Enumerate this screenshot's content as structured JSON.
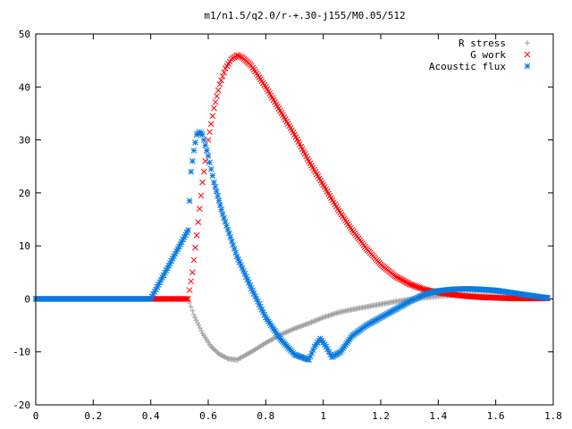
{
  "chart_data": {
    "type": "scatter",
    "title": "m1/n1.5/q2.0/r-+.30-j155/M0.05/512",
    "xlabel": "",
    "ylabel": "",
    "xlim": [
      0,
      1.8
    ],
    "ylim": [
      -20,
      50
    ],
    "x_ticks": [
      "0",
      "0.2",
      "0.4",
      "0.6",
      "0.8",
      "1",
      "1.2",
      "1.4",
      "1.6",
      "1.8"
    ],
    "y_ticks": [
      "-20",
      "-10",
      "0",
      "10",
      "20",
      "30",
      "40",
      "50"
    ],
    "legend_position": "top-right",
    "series": [
      {
        "name": "R stress",
        "marker": "plus",
        "color": "#a0a0a0",
        "x": [
          0.0,
          0.2,
          0.4,
          0.53,
          0.55,
          0.58,
          0.61,
          0.64,
          0.67,
          0.7,
          0.75,
          0.8,
          0.85,
          0.9,
          0.95,
          1.0,
          1.05,
          1.1,
          1.15,
          1.2,
          1.25,
          1.3,
          1.35,
          1.4,
          1.45,
          1.5,
          1.55,
          1.6,
          1.65,
          1.7,
          1.75,
          1.78
        ],
        "y": [
          0,
          0,
          0,
          0,
          -3,
          -6.5,
          -9,
          -10.5,
          -11.3,
          -11.5,
          -10,
          -8.3,
          -6.8,
          -5.6,
          -4.6,
          -3.5,
          -2.6,
          -2.0,
          -1.5,
          -1.0,
          -0.5,
          -0.1,
          0.2,
          0.5,
          0.7,
          0.8,
          0.8,
          0.7,
          0.6,
          0.4,
          0.2,
          0.1
        ]
      },
      {
        "name": "G work",
        "marker": "cross",
        "color": "#ff0000",
        "x": [
          0.0,
          0.2,
          0.4,
          0.53,
          0.545,
          0.56,
          0.58,
          0.6,
          0.62,
          0.64,
          0.66,
          0.68,
          0.7,
          0.72,
          0.75,
          0.8,
          0.85,
          0.9,
          0.95,
          1.0,
          1.05,
          1.1,
          1.15,
          1.2,
          1.25,
          1.3,
          1.35,
          1.4,
          1.45,
          1.5,
          1.55,
          1.6,
          1.65,
          1.7,
          1.75,
          1.78
        ],
        "y": [
          0,
          0,
          0,
          0,
          5,
          12,
          22,
          30,
          36,
          40.5,
          43.5,
          45.2,
          46,
          45.5,
          44,
          40,
          35.5,
          31,
          26,
          21.5,
          17,
          13,
          9.5,
          6.5,
          4.3,
          2.8,
          1.8,
          1.2,
          0.8,
          0.5,
          0.3,
          0.2,
          0.1,
          0.1,
          0.1,
          0.1
        ]
      },
      {
        "name": "Acoustic flux",
        "marker": "star",
        "color": "#0a7be0",
        "x": [
          0.0,
          0.2,
          0.4,
          0.53,
          0.54,
          0.55,
          0.56,
          0.57,
          0.58,
          0.6,
          0.62,
          0.65,
          0.7,
          0.75,
          0.8,
          0.85,
          0.9,
          0.95,
          0.97,
          0.99,
          1.01,
          1.03,
          1.06,
          1.1,
          1.15,
          1.2,
          1.25,
          1.3,
          1.35,
          1.4,
          1.45,
          1.5,
          1.55,
          1.6,
          1.65,
          1.7,
          1.75,
          1.78
        ],
        "y": [
          0,
          0,
          0,
          13,
          24,
          28,
          31,
          31.5,
          31,
          27,
          22,
          16,
          8,
          2,
          -3.5,
          -7.5,
          -10.5,
          -11.5,
          -9,
          -7.5,
          -9,
          -11,
          -10,
          -7,
          -5,
          -3.5,
          -2,
          -0.5,
          0.8,
          1.5,
          1.8,
          1.9,
          1.8,
          1.6,
          1.2,
          0.8,
          0.4,
          0.2
        ]
      }
    ]
  }
}
